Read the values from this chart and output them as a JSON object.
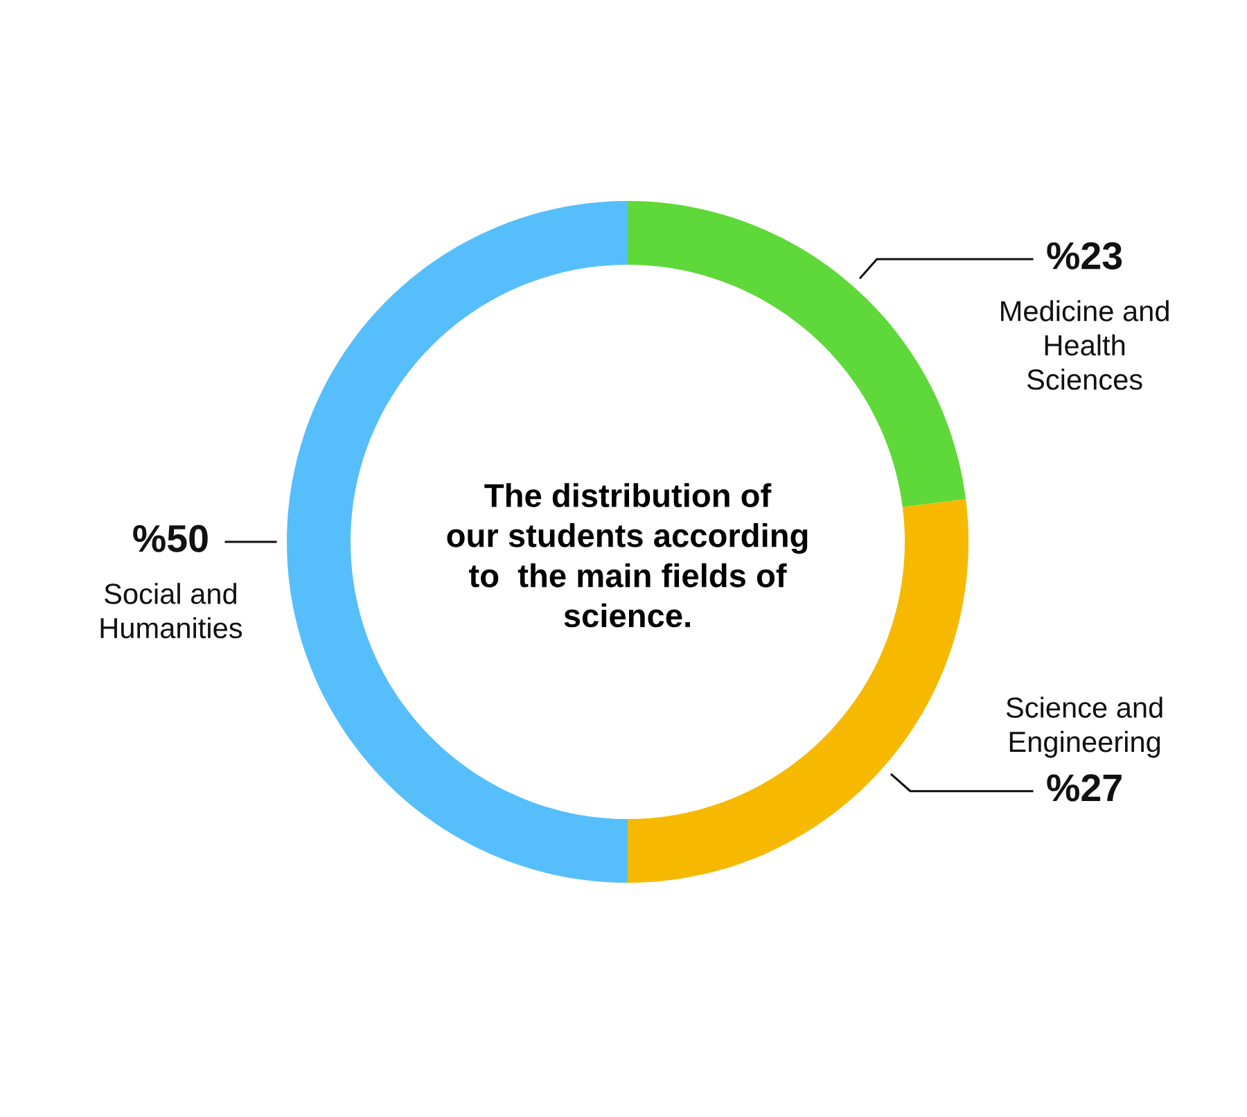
{
  "chart_data": {
    "type": "donut",
    "title": "The distribution of\nour students according\nto  the main fields of\nscience.",
    "categories": [
      "Medicine and\nHealth\nSciences",
      "Science and\nEngineering",
      "Social and\nHumanities"
    ],
    "values": [
      23,
      27,
      50
    ],
    "value_labels": [
      "%23",
      "%27",
      "%50"
    ],
    "colors": [
      "#5fd83a",
      "#f6b900",
      "#56befb"
    ]
  }
}
